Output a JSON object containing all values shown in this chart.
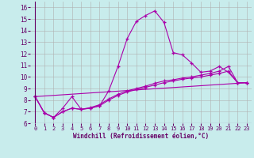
{
  "xlabel": "Windchill (Refroidissement éolien,°C)",
  "bg_color": "#c8ecec",
  "line_color": "#aa00aa",
  "grid_color": "#b0b0b0",
  "xlim": [
    -0.5,
    23.5
  ],
  "ylim": [
    6,
    16.5
  ],
  "xticks": [
    0,
    1,
    2,
    3,
    4,
    5,
    6,
    7,
    8,
    9,
    10,
    11,
    12,
    13,
    14,
    15,
    16,
    17,
    18,
    19,
    20,
    21,
    22,
    23
  ],
  "yticks": [
    6,
    7,
    8,
    9,
    10,
    11,
    12,
    13,
    14,
    15,
    16
  ],
  "line0_x": [
    0,
    1,
    2,
    3,
    4,
    5,
    6,
    7,
    8,
    9,
    10,
    11,
    12,
    13,
    14,
    15,
    16,
    17,
    18,
    19,
    20,
    21,
    22,
    23
  ],
  "line0_y": [
    8.3,
    6.9,
    6.5,
    7.3,
    8.3,
    7.2,
    7.3,
    7.5,
    8.8,
    10.9,
    13.3,
    14.8,
    15.3,
    15.7,
    14.7,
    12.1,
    11.9,
    11.2,
    10.4,
    10.5,
    10.9,
    10.4,
    9.5,
    9.5
  ],
  "line1_x": [
    0,
    1,
    2,
    3,
    4,
    5,
    6,
    7,
    8,
    9,
    10,
    11,
    12,
    13,
    14,
    15,
    16,
    17,
    18,
    19,
    20,
    21,
    22,
    23
  ],
  "line1_y": [
    8.3,
    6.9,
    6.5,
    7.0,
    7.3,
    7.2,
    7.3,
    7.5,
    8.0,
    8.4,
    8.7,
    8.9,
    9.1,
    9.3,
    9.5,
    9.65,
    9.8,
    9.9,
    10.0,
    10.15,
    10.3,
    10.5,
    9.5,
    9.5
  ],
  "line2_x": [
    0,
    1,
    2,
    3,
    4,
    5,
    6,
    7,
    8,
    9,
    10,
    11,
    12,
    13,
    14,
    15,
    16,
    17,
    18,
    19,
    20,
    21,
    22,
    23
  ],
  "line2_y": [
    8.3,
    6.9,
    6.5,
    7.0,
    7.3,
    7.2,
    7.35,
    7.6,
    8.1,
    8.5,
    8.8,
    9.0,
    9.2,
    9.45,
    9.65,
    9.75,
    9.9,
    10.0,
    10.15,
    10.3,
    10.5,
    10.9,
    9.5,
    9.5
  ],
  "line3_x": [
    0,
    23
  ],
  "line3_y": [
    8.3,
    9.5
  ]
}
